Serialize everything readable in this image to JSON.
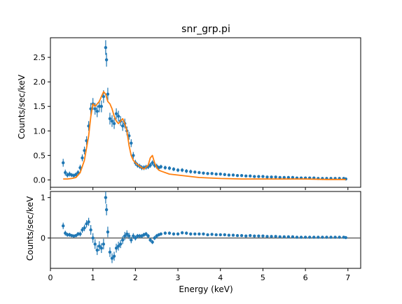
{
  "chart_data": [
    {
      "type": "scatter",
      "title": "snr_grp.pi",
      "xlabel": "",
      "ylabel": "Counts/sec/keV",
      "xlim": [
        0,
        7.3
      ],
      "ylim": [
        -0.15,
        2.9
      ],
      "yticks": [
        0.0,
        0.5,
        1.0,
        1.5,
        2.0,
        2.5
      ],
      "ytick_labels": [
        "0.0",
        "0.5",
        "1.0",
        "1.5",
        "2.0",
        "2.5"
      ],
      "grid": false,
      "colors": {
        "data": "#1f77b4",
        "model": "#ff7f0e"
      },
      "series": [
        {
          "kind": "errorbar",
          "x": [
            0.3,
            0.35,
            0.4,
            0.45,
            0.5,
            0.55,
            0.6,
            0.65,
            0.7,
            0.75,
            0.8,
            0.85,
            0.9,
            0.95,
            1.0,
            1.05,
            1.1,
            1.15,
            1.2,
            1.25,
            1.3,
            1.32,
            1.35,
            1.4,
            1.45,
            1.5,
            1.55,
            1.6,
            1.65,
            1.7,
            1.75,
            1.8,
            1.85,
            1.9,
            1.95,
            2.0,
            2.05,
            2.1,
            2.15,
            2.2,
            2.25,
            2.3,
            2.35,
            2.4,
            2.45,
            2.5,
            2.55,
            2.6,
            2.7,
            2.8,
            2.9,
            3.0,
            3.1,
            3.2,
            3.3,
            3.4,
            3.5,
            3.6,
            3.7,
            3.8,
            3.9,
            4.0,
            4.1,
            4.2,
            4.3,
            4.4,
            4.5,
            4.6,
            4.7,
            4.8,
            4.9,
            5.0,
            5.1,
            5.2,
            5.3,
            5.4,
            5.5,
            5.6,
            5.7,
            5.8,
            5.9,
            6.0,
            6.1,
            6.2,
            6.3,
            6.4,
            6.5,
            6.6,
            6.7,
            6.8,
            6.9,
            6.95
          ],
          "y": [
            0.35,
            0.15,
            0.1,
            0.12,
            0.1,
            0.09,
            0.11,
            0.15,
            0.25,
            0.45,
            0.6,
            0.8,
            1.1,
            1.45,
            1.55,
            1.45,
            1.4,
            1.5,
            1.5,
            1.7,
            2.7,
            2.45,
            1.75,
            1.25,
            1.2,
            1.15,
            1.35,
            1.3,
            1.2,
            1.1,
            1.15,
            1.0,
            0.9,
            0.75,
            0.5,
            0.35,
            0.3,
            0.28,
            0.25,
            0.25,
            0.26,
            0.27,
            0.3,
            0.35,
            0.3,
            0.28,
            0.25,
            0.27,
            0.25,
            0.24,
            0.22,
            0.2,
            0.2,
            0.18,
            0.17,
            0.16,
            0.15,
            0.14,
            0.13,
            0.13,
            0.12,
            0.12,
            0.11,
            0.1,
            0.1,
            0.09,
            0.09,
            0.08,
            0.08,
            0.07,
            0.07,
            0.07,
            0.06,
            0.06,
            0.06,
            0.05,
            0.05,
            0.05,
            0.05,
            0.04,
            0.04,
            0.04,
            0.04,
            0.04,
            0.03,
            0.03,
            0.03,
            0.03,
            0.03,
            0.03,
            0.03,
            0.02
          ],
          "err": [
            0.08,
            0.06,
            0.05,
            0.05,
            0.04,
            0.04,
            0.04,
            0.05,
            0.06,
            0.07,
            0.08,
            0.09,
            0.1,
            0.12,
            0.12,
            0.12,
            0.12,
            0.12,
            0.12,
            0.13,
            0.15,
            0.14,
            0.13,
            0.12,
            0.12,
            0.11,
            0.11,
            0.11,
            0.1,
            0.1,
            0.1,
            0.09,
            0.08,
            0.08,
            0.07,
            0.06,
            0.05,
            0.05,
            0.05,
            0.05,
            0.05,
            0.05,
            0.05,
            0.05,
            0.05,
            0.05,
            0.04,
            0.04,
            0.04,
            0.04,
            0.04,
            0.04,
            0.04,
            0.04,
            0.04,
            0.03,
            0.03,
            0.03,
            0.03,
            0.03,
            0.03,
            0.03,
            0.03,
            0.03,
            0.03,
            0.02,
            0.02,
            0.02,
            0.02,
            0.02,
            0.02,
            0.02,
            0.02,
            0.02,
            0.02,
            0.02,
            0.02,
            0.02,
            0.02,
            0.02,
            0.02,
            0.02,
            0.02,
            0.02,
            0.02,
            0.02,
            0.02,
            0.02,
            0.02,
            0.02,
            0.02,
            0.02
          ]
        },
        {
          "kind": "line",
          "x": [
            0.3,
            0.4,
            0.5,
            0.6,
            0.7,
            0.8,
            0.9,
            0.95,
            1.0,
            1.05,
            1.1,
            1.15,
            1.2,
            1.25,
            1.3,
            1.35,
            1.4,
            1.45,
            1.5,
            1.55,
            1.6,
            1.65,
            1.7,
            1.75,
            1.8,
            1.85,
            1.9,
            1.95,
            2.0,
            2.1,
            2.2,
            2.3,
            2.35,
            2.4,
            2.45,
            2.5,
            2.55,
            2.6,
            2.8,
            3.0,
            3.5,
            4.0,
            4.5,
            5.0,
            5.5,
            6.0,
            6.5,
            6.95
          ],
          "y": [
            0.02,
            0.02,
            0.03,
            0.05,
            0.15,
            0.4,
            0.9,
            1.3,
            1.55,
            1.5,
            1.55,
            1.6,
            1.7,
            1.8,
            1.75,
            1.6,
            1.55,
            1.45,
            1.3,
            1.2,
            1.15,
            1.2,
            1.25,
            1.15,
            1.0,
            0.7,
            0.5,
            0.4,
            0.35,
            0.28,
            0.22,
            0.3,
            0.45,
            0.5,
            0.35,
            0.25,
            0.2,
            0.18,
            0.12,
            0.1,
            0.05,
            0.03,
            0.02,
            0.02,
            0.02,
            0.02,
            0.01,
            0.01
          ]
        }
      ]
    },
    {
      "type": "scatter",
      "title": "",
      "xlabel": "Energy (keV)",
      "ylabel": "Counts/sec/keV",
      "xlim": [
        0,
        7.3
      ],
      "ylim": [
        -0.75,
        1.15
      ],
      "xticks": [
        0,
        1,
        2,
        3,
        4,
        5,
        6,
        7
      ],
      "xtick_labels": [
        "0",
        "1",
        "2",
        "3",
        "4",
        "5",
        "6",
        "7"
      ],
      "yticks": [
        0,
        1
      ],
      "ytick_labels": [
        "0",
        "1"
      ],
      "grid": false,
      "reference_line_y": 0,
      "colors": {
        "data": "#1f77b4",
        "reference": "#5a5a5a"
      },
      "series": [
        {
          "kind": "errorbar",
          "x": [
            0.3,
            0.35,
            0.4,
            0.45,
            0.5,
            0.55,
            0.6,
            0.65,
            0.7,
            0.75,
            0.8,
            0.85,
            0.9,
            0.95,
            1.0,
            1.05,
            1.1,
            1.15,
            1.2,
            1.25,
            1.3,
            1.32,
            1.35,
            1.4,
            1.45,
            1.5,
            1.55,
            1.6,
            1.65,
            1.7,
            1.75,
            1.8,
            1.85,
            1.9,
            1.95,
            2.0,
            2.05,
            2.1,
            2.15,
            2.2,
            2.25,
            2.3,
            2.35,
            2.4,
            2.45,
            2.5,
            2.55,
            2.6,
            2.7,
            2.8,
            2.9,
            3.0,
            3.1,
            3.2,
            3.3,
            3.4,
            3.5,
            3.6,
            3.7,
            3.8,
            3.9,
            4.0,
            4.1,
            4.2,
            4.3,
            4.4,
            4.5,
            4.6,
            4.7,
            4.8,
            4.9,
            5.0,
            5.1,
            5.2,
            5.3,
            5.4,
            5.5,
            5.6,
            5.7,
            5.8,
            5.9,
            6.0,
            6.1,
            6.2,
            6.3,
            6.4,
            6.5,
            6.6,
            6.7,
            6.8,
            6.9,
            6.95
          ],
          "y": [
            0.3,
            0.12,
            0.08,
            0.08,
            0.06,
            0.05,
            0.06,
            0.1,
            0.1,
            0.2,
            0.25,
            0.35,
            0.4,
            0.2,
            0.0,
            -0.15,
            -0.3,
            -0.2,
            -0.25,
            -0.15,
            1.0,
            0.7,
            0.15,
            -0.35,
            -0.5,
            -0.45,
            -0.25,
            -0.2,
            -0.15,
            -0.05,
            0.05,
            0.1,
            0.05,
            -0.05,
            0.05,
            0.0,
            0.05,
            0.05,
            0.05,
            0.08,
            0.1,
            0.05,
            -0.05,
            -0.1,
            0.0,
            0.05,
            0.08,
            0.1,
            0.12,
            0.12,
            0.1,
            0.1,
            0.13,
            0.12,
            0.1,
            0.1,
            0.1,
            0.1,
            0.08,
            0.09,
            0.08,
            0.08,
            0.08,
            0.07,
            0.07,
            0.06,
            0.06,
            0.05,
            0.06,
            0.05,
            0.05,
            0.05,
            0.04,
            0.04,
            0.04,
            0.03,
            0.03,
            0.03,
            0.03,
            0.02,
            0.02,
            0.02,
            0.02,
            0.02,
            0.02,
            0.02,
            0.02,
            0.02,
            0.02,
            0.02,
            0.02,
            0.01
          ],
          "err": [
            0.08,
            0.06,
            0.05,
            0.05,
            0.04,
            0.04,
            0.04,
            0.05,
            0.06,
            0.07,
            0.08,
            0.09,
            0.1,
            0.12,
            0.12,
            0.12,
            0.12,
            0.12,
            0.12,
            0.13,
            0.15,
            0.14,
            0.13,
            0.12,
            0.12,
            0.11,
            0.11,
            0.11,
            0.1,
            0.1,
            0.1,
            0.09,
            0.08,
            0.08,
            0.07,
            0.06,
            0.05,
            0.05,
            0.05,
            0.05,
            0.05,
            0.05,
            0.05,
            0.05,
            0.05,
            0.05,
            0.04,
            0.04,
            0.04,
            0.04,
            0.04,
            0.04,
            0.04,
            0.04,
            0.04,
            0.03,
            0.03,
            0.03,
            0.03,
            0.03,
            0.03,
            0.03,
            0.03,
            0.03,
            0.03,
            0.02,
            0.02,
            0.02,
            0.02,
            0.02,
            0.02,
            0.02,
            0.02,
            0.02,
            0.02,
            0.02,
            0.02,
            0.02,
            0.02,
            0.02,
            0.02,
            0.02,
            0.02,
            0.02,
            0.02,
            0.02,
            0.02,
            0.02,
            0.02,
            0.02,
            0.02,
            0.02
          ]
        }
      ]
    }
  ]
}
